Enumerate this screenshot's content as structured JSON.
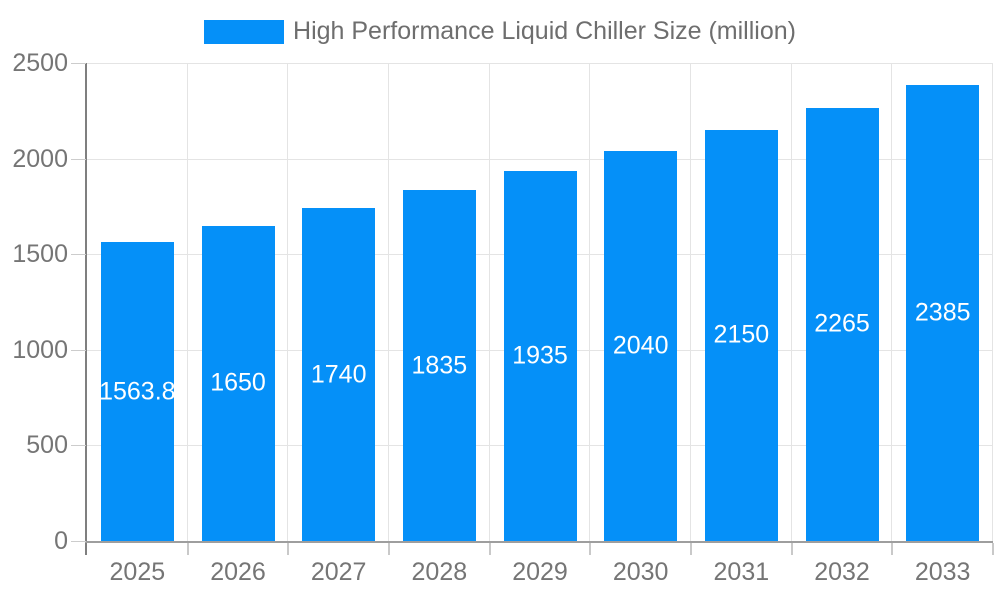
{
  "legend": {
    "label": "High Performance Liquid Chiller Size (million)",
    "swatch_color": "#0590f8"
  },
  "chart_data": {
    "type": "bar",
    "title": "High Performance Liquid Chiller Size (million)",
    "categories": [
      "2025",
      "2026",
      "2027",
      "2028",
      "2029",
      "2030",
      "2031",
      "2032",
      "2033"
    ],
    "values": [
      1563.8,
      1650,
      1740,
      1835,
      1935,
      2040,
      2150,
      2265,
      2385
    ],
    "bar_labels": [
      "1563.8",
      "1650",
      "1740",
      "1835",
      "1935",
      "2040",
      "2150",
      "2265",
      "2385"
    ],
    "xlabel": "",
    "ylabel": "",
    "ylim": [
      0,
      2500
    ],
    "yticks": [
      0,
      500,
      1000,
      1500,
      2000,
      2500
    ],
    "ytick_labels": [
      "0",
      "500",
      "1000",
      "1500",
      "2000",
      "2500"
    ],
    "grid": true,
    "legend_position": "top-center",
    "bar_color": "#0590f8",
    "value_label_color": "#ffffff",
    "axis_text_color": "#757575"
  },
  "colors": {
    "background": "#ffffff",
    "gridline": "#e4e4e4",
    "y_axis_line": "#7f7f7f",
    "x_axis_line": "#9e9e9e",
    "tick_mark": "#c9c9c9"
  }
}
